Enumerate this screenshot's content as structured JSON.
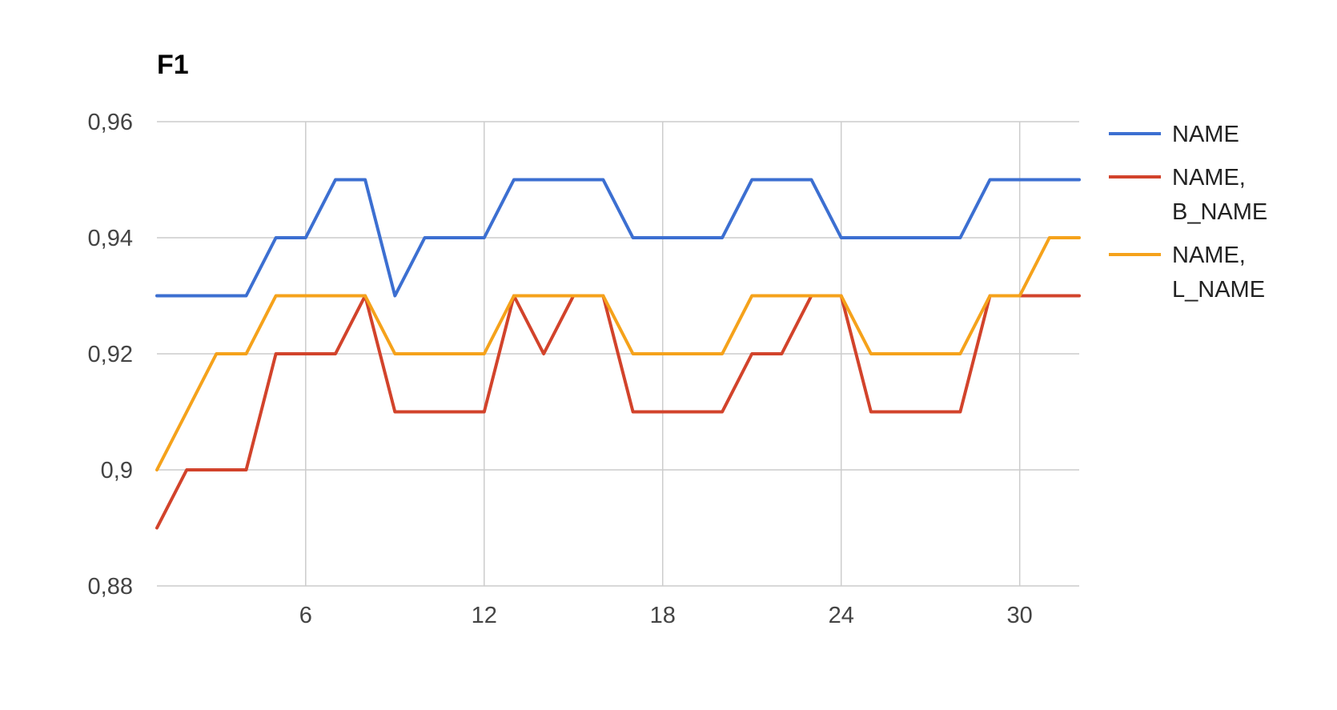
{
  "chart_data": {
    "type": "line",
    "title": "F1",
    "xlabel": "",
    "ylabel": "",
    "x": [
      1,
      2,
      3,
      4,
      5,
      6,
      7,
      8,
      9,
      10,
      11,
      12,
      13,
      14,
      15,
      16,
      17,
      18,
      19,
      20,
      21,
      22,
      23,
      24,
      25,
      26,
      27,
      28,
      29,
      30,
      31,
      32
    ],
    "xlim": [
      1,
      32
    ],
    "ylim": [
      0.88,
      0.96
    ],
    "x_ticks": [
      6,
      12,
      18,
      24,
      30
    ],
    "x_tick_labels": [
      "6",
      "12",
      "18",
      "24",
      "30"
    ],
    "y_ticks": [
      0.88,
      0.9,
      0.92,
      0.94,
      0.96
    ],
    "y_tick_labels": [
      "0,88",
      "0,9",
      "0,92",
      "0,94",
      "0,96"
    ],
    "grid": true,
    "legend_position": "right",
    "series": [
      {
        "name": "NAME",
        "legend_lines": [
          "NAME"
        ],
        "color": "#3c6fd1",
        "values": [
          0.93,
          0.93,
          0.93,
          0.93,
          0.94,
          0.94,
          0.95,
          0.95,
          0.93,
          0.94,
          0.94,
          0.94,
          0.95,
          0.95,
          0.95,
          0.95,
          0.94,
          0.94,
          0.94,
          0.94,
          0.95,
          0.95,
          0.95,
          0.94,
          0.94,
          0.94,
          0.94,
          0.94,
          0.95,
          0.95,
          0.95,
          0.95
        ]
      },
      {
        "name": "NAME, B_NAME",
        "legend_lines": [
          "NAME,",
          "B_NAME"
        ],
        "color": "#d2432b",
        "values": [
          0.89,
          0.9,
          0.9,
          0.9,
          0.92,
          0.92,
          0.92,
          0.93,
          0.91,
          0.91,
          0.91,
          0.91,
          0.93,
          0.92,
          0.93,
          0.93,
          0.91,
          0.91,
          0.91,
          0.91,
          0.92,
          0.92,
          0.93,
          0.93,
          0.91,
          0.91,
          0.91,
          0.91,
          0.93,
          0.93,
          0.93,
          0.93
        ]
      },
      {
        "name": "NAME, L_NAME",
        "legend_lines": [
          "NAME,",
          "L_NAME"
        ],
        "color": "#f5a21b",
        "values": [
          0.9,
          0.91,
          0.92,
          0.92,
          0.93,
          0.93,
          0.93,
          0.93,
          0.92,
          0.92,
          0.92,
          0.92,
          0.93,
          0.93,
          0.93,
          0.93,
          0.92,
          0.92,
          0.92,
          0.92,
          0.93,
          0.93,
          0.93,
          0.93,
          0.92,
          0.92,
          0.92,
          0.92,
          0.93,
          0.93,
          0.94,
          0.94
        ]
      }
    ]
  }
}
